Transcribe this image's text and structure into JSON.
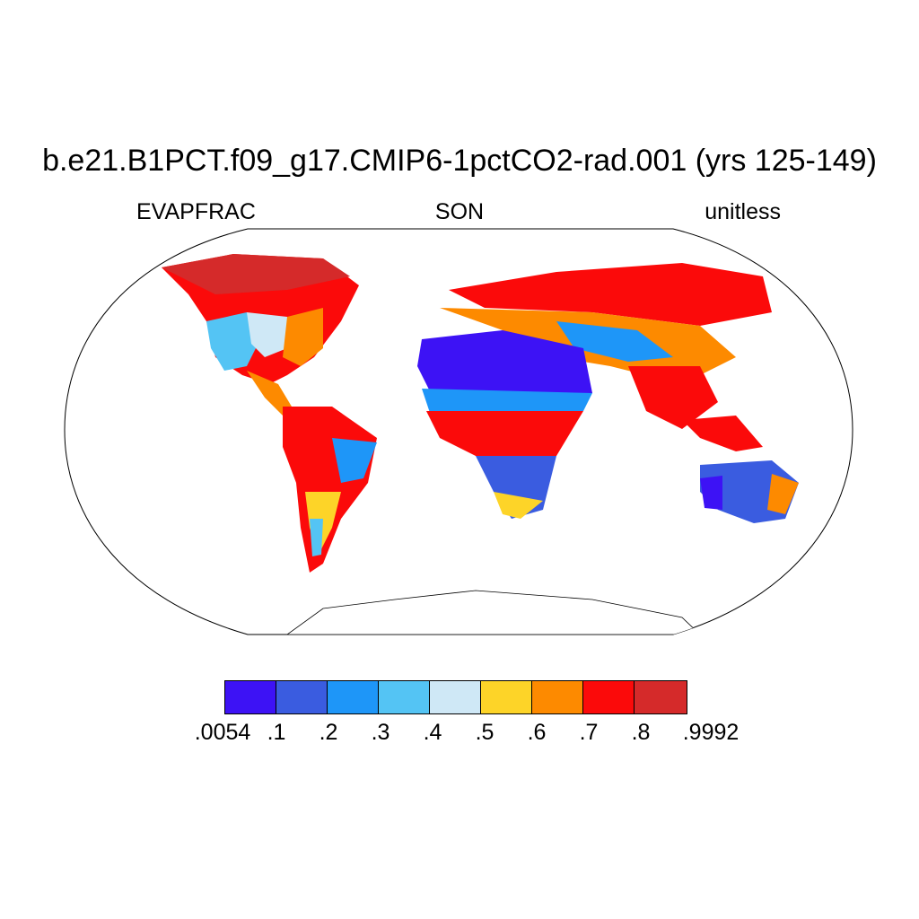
{
  "title": "b.e21.B1PCT.f09_g17.CMIP6-1pctCO2-rad.001 (yrs 125-149)",
  "variable": "EVAPFRAC",
  "season": "SON",
  "units": "unitless",
  "colorbar": {
    "colors": [
      "#3d12f5",
      "#3a5ce0",
      "#1e96f8",
      "#54c4f4",
      "#cfe8f6",
      "#fdd428",
      "#fd8a00",
      "#fb0a0a",
      "#d52a2a"
    ],
    "labels": [
      ".0054",
      ".1",
      ".2",
      ".3",
      ".4",
      ".5",
      ".6",
      ".7",
      ".8",
      ".9992"
    ]
  },
  "map": {
    "projection": "Robinson",
    "ocean_color": "#ffffff",
    "coastline_color": "#000000"
  }
}
